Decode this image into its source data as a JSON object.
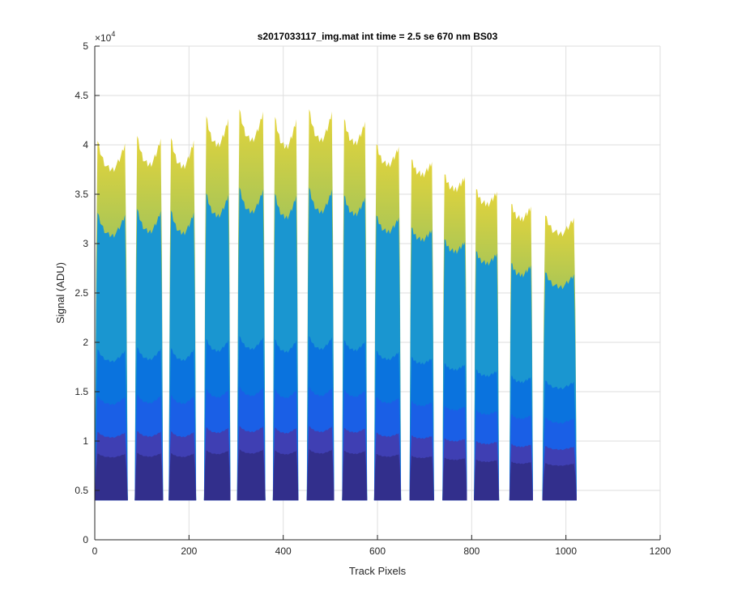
{
  "chart_data": {
    "type": "area",
    "title": "s2017033117_img.mat int time = 2.5 se  670 nm BS03",
    "xlabel": "Track Pixels",
    "ylabel": "Signal (ADU)",
    "y_exponent_label": "×10",
    "y_exponent": "4",
    "xlim": [
      0,
      1200
    ],
    "ylim": [
      0,
      50000
    ],
    "x_ticks": [
      0,
      200,
      400,
      600,
      800,
      1000,
      1200
    ],
    "x_tick_labels": [
      "0",
      "200",
      "400",
      "600",
      "800",
      "1000",
      "1200"
    ],
    "y_ticks": [
      0,
      5000,
      10000,
      15000,
      20000,
      25000,
      30000,
      35000,
      40000,
      45000,
      50000
    ],
    "y_tick_labels": [
      "0",
      "0.5",
      "1",
      "1.5",
      "2",
      "2.5",
      "3",
      "3.5",
      "4",
      "4.5",
      "5"
    ],
    "grid": true,
    "baseline": 4000,
    "bands": [
      {
        "start": 0,
        "end": 70,
        "peak": 41500,
        "min": 37500
      },
      {
        "start": 85,
        "end": 145,
        "peak": 42000,
        "min": 38000
      },
      {
        "start": 157,
        "end": 215,
        "peak": 41800,
        "min": 37800
      },
      {
        "start": 232,
        "end": 288,
        "peak": 44000,
        "min": 40000
      },
      {
        "start": 302,
        "end": 362,
        "peak": 44800,
        "min": 40500
      },
      {
        "start": 378,
        "end": 432,
        "peak": 44000,
        "min": 39800
      },
      {
        "start": 450,
        "end": 508,
        "peak": 44800,
        "min": 40500
      },
      {
        "start": 525,
        "end": 578,
        "peak": 43500,
        "min": 40200
      },
      {
        "start": 593,
        "end": 650,
        "peak": 40800,
        "min": 38000
      },
      {
        "start": 668,
        "end": 720,
        "peak": 39000,
        "min": 37000
      },
      {
        "start": 738,
        "end": 790,
        "peak": 37500,
        "min": 35500
      },
      {
        "start": 805,
        "end": 858,
        "peak": 36000,
        "min": 34000
      },
      {
        "start": 880,
        "end": 930,
        "peak": 34500,
        "min": 32500
      },
      {
        "start": 950,
        "end": 1023,
        "peak": 33500,
        "min": 31000
      }
    ],
    "layers": [
      {
        "scale": 1.0,
        "color_low": "#7fbc6a",
        "color_high": "#e5d43a"
      },
      {
        "scale": 0.8,
        "color": "#1a96d0"
      },
      {
        "scale": 0.42,
        "color": "#0a73de"
      },
      {
        "scale": 0.29,
        "color": "#1a5fe6"
      },
      {
        "scale": 0.19,
        "color": "#3f3fb3"
      },
      {
        "scale": 0.13,
        "color": "#322f8c"
      }
    ]
  }
}
